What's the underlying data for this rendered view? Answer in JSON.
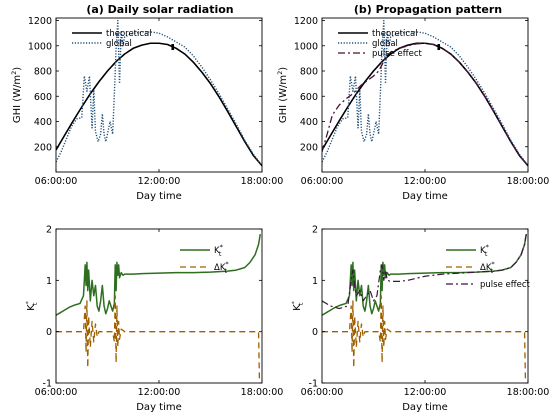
{
  "colors": {
    "theoretical": "#000000",
    "global": "#1f4e79",
    "pulse": "#4b1238",
    "kt": "#2e6e1f",
    "dkt": "#a06000",
    "pulse_kt": "#3a1640"
  },
  "chart_data": [
    {
      "id": "a-top",
      "type": "line",
      "title": "(a) Daily solar radiation",
      "xlabel": "Day time",
      "ylabel": "GHI (W/m2)",
      "ylabel_main": "GHI (W/m",
      "ylabel_sup": "2",
      "ylabel_end": ")",
      "xlim": [
        6,
        18
      ],
      "ylim": [
        0,
        1220
      ],
      "xticks": [
        6,
        12,
        18
      ],
      "xtick_labels": [
        "06:00:00",
        "12:00:00",
        "18:00:00"
      ],
      "yticks": [
        200,
        400,
        600,
        800,
        1000,
        1200
      ],
      "ytick_labels": [
        "200",
        "400",
        "600",
        "800",
        "1000",
        "1200"
      ],
      "legend": [
        "theoretical",
        "global"
      ],
      "series": [
        {
          "key": "theoretical",
          "name": "theoretical",
          "style": "solid",
          "x": [
            6.0,
            6.5,
            7.0,
            7.5,
            8.0,
            8.5,
            9.0,
            9.5,
            10.0,
            10.5,
            11.0,
            11.5,
            12.0,
            12.5,
            13.0,
            13.5,
            14.0,
            14.5,
            15.0,
            15.5,
            16.0,
            16.5,
            17.0,
            17.5,
            18.0
          ],
          "y": [
            175,
            290,
            405,
            515,
            620,
            715,
            800,
            875,
            935,
            980,
            1005,
            1020,
            1020,
            1010,
            980,
            935,
            870,
            790,
            700,
            595,
            480,
            360,
            240,
            130,
            50
          ]
        },
        {
          "key": "global",
          "name": "global",
          "style": "dotted",
          "x": [
            6.0,
            6.3,
            6.6,
            6.9,
            7.2,
            7.5,
            7.65,
            7.8,
            7.95,
            8.1,
            8.2,
            8.3,
            8.45,
            8.6,
            8.7,
            8.8,
            8.9,
            9.0,
            9.15,
            9.3,
            9.4,
            9.5,
            9.6,
            9.7,
            9.8,
            9.9,
            10.0,
            10.3,
            10.6,
            11.0,
            11.5,
            12.0,
            12.5,
            13.0,
            13.5,
            14.0,
            14.5,
            15.0,
            15.5,
            16.0,
            16.5,
            17.0,
            17.5,
            18.0
          ],
          "y": [
            80,
            160,
            260,
            360,
            420,
            430,
            760,
            640,
            760,
            350,
            650,
            320,
            240,
            300,
            460,
            300,
            240,
            300,
            400,
            300,
            620,
            980,
            1200,
            700,
            1120,
            1000,
            1070,
            1090,
            1100,
            1110,
            1110,
            1100,
            1070,
            1030,
            990,
            920,
            830,
            730,
            620,
            500,
            380,
            250,
            140,
            50
          ]
        }
      ],
      "marker": {
        "x": 12.8,
        "y": 990
      }
    },
    {
      "id": "b-top",
      "type": "line",
      "title": "(b) Propagation pattern",
      "xlabel": "Day time",
      "ylabel": "GHI (W/m2)",
      "ylabel_main": "GHI (W/m",
      "ylabel_sup": "2",
      "ylabel_end": ")",
      "xlim": [
        6,
        18
      ],
      "ylim": [
        0,
        1220
      ],
      "xticks": [
        6,
        12,
        18
      ],
      "xtick_labels": [
        "06:00:00",
        "12:00:00",
        "18:00:00"
      ],
      "yticks": [
        200,
        400,
        600,
        800,
        1000,
        1200
      ],
      "ytick_labels": [
        "200",
        "400",
        "600",
        "800",
        "1000",
        "1200"
      ],
      "legend": [
        "theoretical",
        "global",
        "pulse effect"
      ],
      "series": [
        {
          "key": "theoretical",
          "name": "theoretical",
          "style": "solid",
          "x": [
            6.0,
            6.5,
            7.0,
            7.5,
            8.0,
            8.5,
            9.0,
            9.5,
            10.0,
            10.5,
            11.0,
            11.5,
            12.0,
            12.5,
            13.0,
            13.5,
            14.0,
            14.5,
            15.0,
            15.5,
            16.0,
            16.5,
            17.0,
            17.5,
            18.0
          ],
          "y": [
            175,
            290,
            405,
            515,
            620,
            715,
            800,
            875,
            935,
            980,
            1005,
            1020,
            1020,
            1010,
            980,
            935,
            870,
            790,
            700,
            595,
            480,
            360,
            240,
            130,
            50
          ]
        },
        {
          "key": "global",
          "name": "global",
          "style": "dotted",
          "x": [
            6.0,
            6.3,
            6.6,
            6.9,
            7.2,
            7.5,
            7.65,
            7.8,
            7.95,
            8.1,
            8.2,
            8.3,
            8.45,
            8.6,
            8.7,
            8.8,
            8.9,
            9.0,
            9.15,
            9.3,
            9.4,
            9.5,
            9.6,
            9.7,
            9.8,
            9.9,
            10.0,
            10.3,
            10.6,
            11.0,
            11.5,
            12.0,
            12.5,
            13.0,
            13.5,
            14.0,
            14.5,
            15.0,
            15.5,
            16.0,
            16.5,
            17.0,
            17.5,
            18.0
          ],
          "y": [
            80,
            160,
            260,
            360,
            420,
            430,
            760,
            640,
            760,
            350,
            650,
            320,
            240,
            300,
            460,
            300,
            240,
            300,
            400,
            300,
            620,
            980,
            1200,
            700,
            1120,
            1000,
            1070,
            1090,
            1100,
            1110,
            1110,
            1100,
            1070,
            1030,
            990,
            920,
            830,
            730,
            620,
            500,
            380,
            250,
            140,
            50
          ]
        },
        {
          "key": "pulse",
          "name": "pulse effect",
          "style": "dashdot",
          "x": [
            6.0,
            6.3,
            6.6,
            7.0,
            7.4,
            7.8,
            8.0,
            8.3,
            8.6,
            9.0,
            9.3,
            9.5,
            9.7,
            10.0,
            10.5,
            11.0,
            11.5,
            12.0,
            12.5,
            13.0,
            13.5,
            14.0,
            14.5,
            15.0,
            15.5,
            16.0,
            16.5,
            17.0,
            17.5,
            18.0
          ],
          "y": [
            160,
            300,
            450,
            530,
            580,
            620,
            650,
            690,
            720,
            760,
            800,
            850,
            910,
            950,
            980,
            1000,
            1015,
            1020,
            1010,
            980,
            935,
            870,
            790,
            700,
            595,
            480,
            360,
            240,
            130,
            50
          ]
        }
      ],
      "marker": {
        "x": 12.8,
        "y": 990
      }
    },
    {
      "id": "a-bottom",
      "type": "line",
      "xlabel": "Day time",
      "ylabel": "K*t",
      "xlim": [
        6,
        18
      ],
      "ylim": [
        -1,
        2
      ],
      "xticks": [
        6,
        12,
        18
      ],
      "xtick_labels": [
        "06:00:00",
        "12:00:00",
        "18:00:00"
      ],
      "yticks": [
        -1,
        0,
        1,
        2
      ],
      "ytick_labels": [
        "-1",
        "0",
        "1",
        "2"
      ],
      "legend": [
        "K*t",
        "ΔK*t"
      ],
      "series": [
        {
          "key": "kt",
          "name": "K*t",
          "style": "solid",
          "x": [
            6.0,
            6.2,
            6.5,
            6.8,
            7.1,
            7.4,
            7.6,
            7.7,
            7.75,
            7.8,
            7.85,
            7.9,
            8.0,
            8.1,
            8.2,
            8.3,
            8.4,
            8.5,
            8.6,
            8.7,
            8.8,
            8.9,
            9.0,
            9.1,
            9.2,
            9.3,
            9.4,
            9.45,
            9.5,
            9.55,
            9.6,
            9.65,
            9.7,
            9.8,
            9.9,
            10.0,
            10.5,
            11.0,
            12.0,
            13.0,
            14.0,
            15.0,
            16.0,
            16.5,
            17.0,
            17.3,
            17.6,
            17.8,
            17.9
          ],
          "y": [
            0.32,
            0.36,
            0.42,
            0.48,
            0.52,
            0.55,
            0.7,
            1.3,
            0.9,
            1.35,
            0.8,
            1.2,
            0.6,
            1.0,
            0.7,
            0.9,
            0.5,
            0.4,
            0.6,
            0.9,
            0.5,
            0.35,
            0.45,
            0.6,
            0.5,
            0.4,
            0.55,
            1.3,
            0.8,
            1.35,
            1.1,
            1.3,
            1.05,
            1.15,
            1.1,
            1.12,
            1.12,
            1.13,
            1.14,
            1.15,
            1.15,
            1.16,
            1.18,
            1.2,
            1.25,
            1.35,
            1.5,
            1.7,
            1.9
          ]
        },
        {
          "key": "dkt",
          "name": "ΔK*t",
          "style": "dashed",
          "x": [
            6.0,
            7.6,
            7.7,
            7.75,
            7.8,
            7.85,
            7.9,
            8.0,
            8.1,
            8.2,
            8.3,
            8.4,
            8.5,
            9.3,
            9.4,
            9.45,
            9.5,
            9.55,
            9.6,
            9.65,
            9.7,
            9.8,
            10.0,
            12.0,
            14.0,
            16.0,
            17.5,
            17.8,
            17.85,
            17.9
          ],
          "y": [
            0.0,
            0.0,
            0.5,
            -0.4,
            0.6,
            -0.7,
            0.3,
            -0.3,
            0.2,
            -0.2,
            0.15,
            -0.1,
            0.0,
            0.0,
            -0.2,
            0.7,
            -0.6,
            0.5,
            -0.3,
            0.2,
            -0.15,
            0.05,
            0.0,
            0.0,
            0.0,
            0.0,
            0.0,
            0.0,
            -0.95,
            -0.95
          ]
        }
      ]
    },
    {
      "id": "b-bottom",
      "type": "line",
      "xlabel": "Day time",
      "ylabel": "K*t",
      "xlim": [
        6,
        18
      ],
      "ylim": [
        -1,
        2
      ],
      "xticks": [
        6,
        12,
        18
      ],
      "xtick_labels": [
        "06:00:00",
        "12:00:00",
        "18:00:00"
      ],
      "yticks": [
        -1,
        0,
        1,
        2
      ],
      "ytick_labels": [
        "-1",
        "0",
        "1",
        "2"
      ],
      "legend": [
        "K*t",
        "ΔK*t",
        "pulse effect"
      ],
      "series": [
        {
          "key": "kt",
          "name": "K*t",
          "style": "solid",
          "x": [
            6.0,
            6.2,
            6.5,
            6.8,
            7.1,
            7.4,
            7.6,
            7.7,
            7.75,
            7.8,
            7.85,
            7.9,
            8.0,
            8.1,
            8.2,
            8.3,
            8.4,
            8.5,
            8.6,
            8.7,
            8.8,
            8.9,
            9.0,
            9.1,
            9.2,
            9.3,
            9.4,
            9.45,
            9.5,
            9.55,
            9.6,
            9.65,
            9.7,
            9.8,
            9.9,
            10.0,
            10.5,
            11.0,
            12.0,
            13.0,
            14.0,
            15.0,
            16.0,
            16.5,
            17.0,
            17.3,
            17.6,
            17.8,
            17.9
          ],
          "y": [
            0.32,
            0.36,
            0.42,
            0.48,
            0.52,
            0.55,
            0.7,
            1.3,
            0.9,
            1.35,
            0.8,
            1.2,
            0.6,
            1.0,
            0.7,
            0.9,
            0.5,
            0.4,
            0.6,
            0.9,
            0.5,
            0.35,
            0.45,
            0.6,
            0.5,
            0.4,
            0.55,
            1.3,
            0.8,
            1.35,
            1.1,
            1.3,
            1.05,
            1.15,
            1.1,
            1.12,
            1.12,
            1.13,
            1.14,
            1.15,
            1.15,
            1.16,
            1.18,
            1.2,
            1.25,
            1.35,
            1.5,
            1.7,
            1.9
          ]
        },
        {
          "key": "dkt",
          "name": "ΔK*t",
          "style": "dashed",
          "x": [
            6.0,
            7.6,
            7.7,
            7.75,
            7.8,
            7.85,
            7.9,
            8.0,
            8.1,
            8.2,
            8.3,
            8.4,
            8.5,
            9.3,
            9.4,
            9.45,
            9.5,
            9.55,
            9.6,
            9.65,
            9.7,
            9.8,
            10.0,
            12.0,
            14.0,
            16.0,
            17.5,
            17.8,
            17.85,
            17.9
          ],
          "y": [
            0.0,
            0.0,
            0.5,
            -0.4,
            0.6,
            -0.7,
            0.3,
            -0.3,
            0.2,
            -0.2,
            0.15,
            -0.1,
            0.0,
            0.0,
            -0.2,
            0.7,
            -0.6,
            0.5,
            -0.3,
            0.2,
            -0.15,
            0.05,
            0.0,
            0.0,
            0.0,
            0.0,
            0.0,
            0.0,
            -0.95,
            -0.95
          ]
        },
        {
          "key": "pulse_kt",
          "name": "pulse effect",
          "style": "dashdot",
          "x": [
            6.0,
            6.5,
            7.0,
            7.5,
            7.7,
            7.8,
            7.9,
            8.0,
            8.2,
            8.4,
            8.6,
            8.8,
            9.0,
            9.2,
            9.4,
            9.5,
            9.6,
            9.7,
            9.8,
            10.0,
            10.5,
            11.0,
            12.0,
            13.0,
            14.0,
            15.0,
            16.0,
            16.5,
            17.0,
            17.3,
            17.6,
            17.8,
            17.9
          ],
          "y": [
            0.6,
            0.5,
            0.45,
            0.5,
            1.0,
            1.2,
            0.9,
            0.7,
            0.8,
            0.6,
            0.7,
            0.8,
            0.6,
            0.7,
            1.2,
            1.3,
            1.0,
            1.2,
            1.0,
            0.98,
            0.98,
            1.0,
            1.08,
            1.12,
            1.14,
            1.16,
            1.18,
            1.2,
            1.25,
            1.35,
            1.5,
            1.7,
            1.9
          ]
        }
      ]
    }
  ]
}
